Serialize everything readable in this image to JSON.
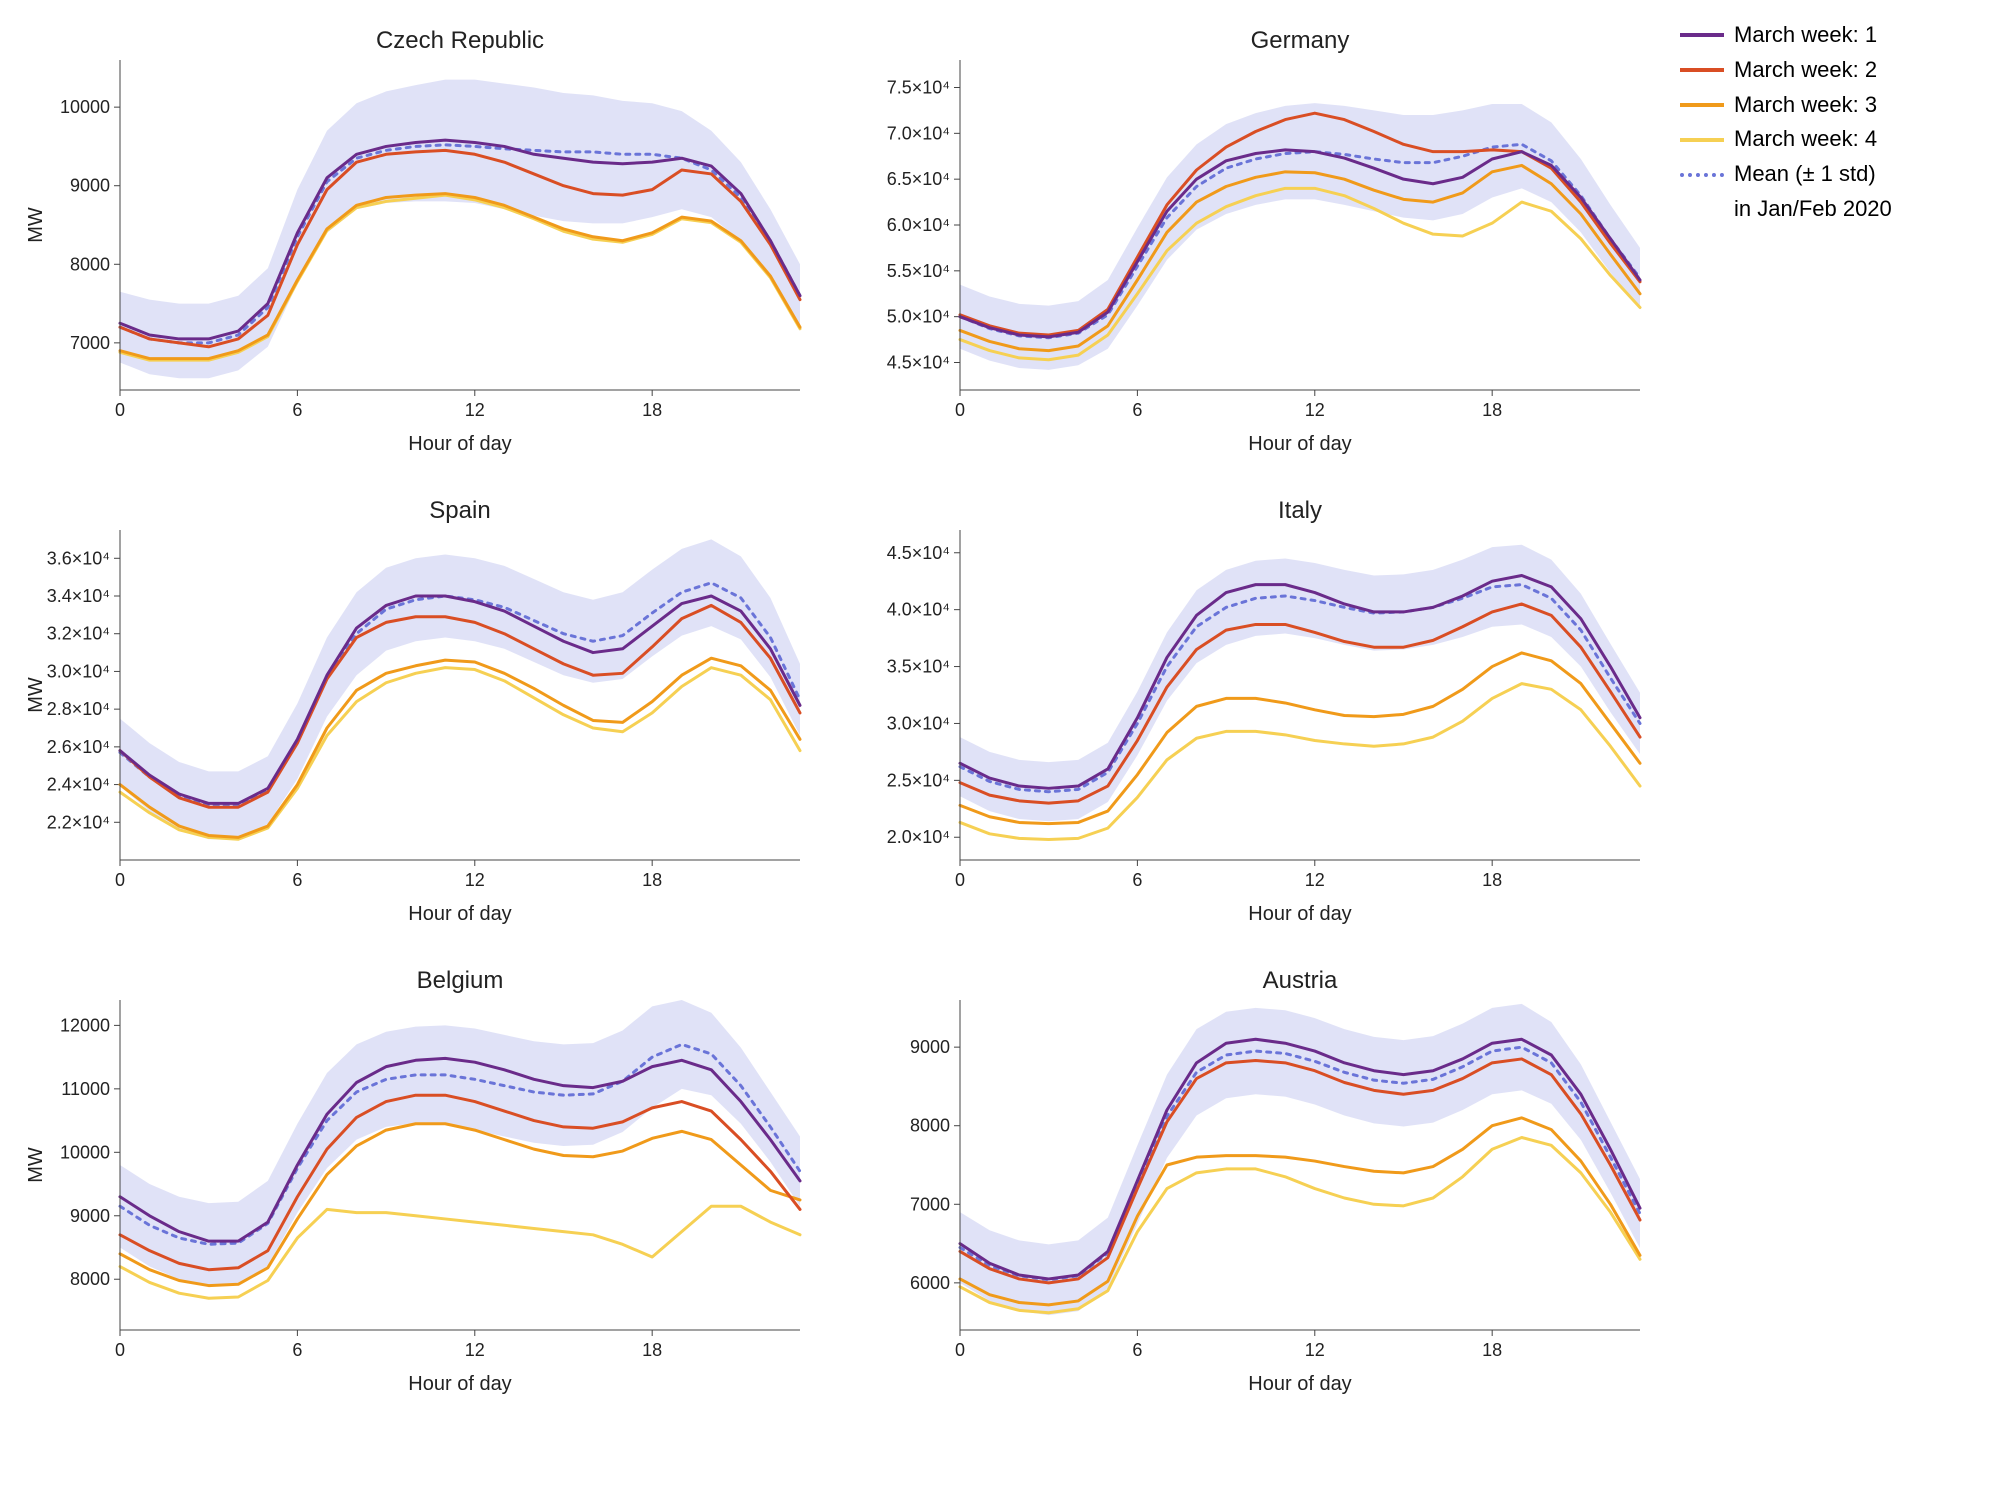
{
  "legend": {
    "items": [
      {
        "label": "March week: 1"
      },
      {
        "label": "March week: 2"
      },
      {
        "label": "March week: 3"
      },
      {
        "label": "March week: 4"
      },
      {
        "label": "Mean (± 1 std)"
      }
    ],
    "subtitle": "in Jan/Feb 2020"
  },
  "style": {
    "colors": {
      "week1": "#6a2b8a",
      "week2": "#d94e24",
      "week3": "#f09a1a",
      "week4": "#f6d053",
      "mean": "#6a74d8",
      "band": "#c7caf0",
      "band_opacity": 0.55,
      "grid": "#e6e6e6",
      "axis": "#444444",
      "text": "#222222",
      "background": "#ffffff"
    },
    "line_width": 3,
    "mean_line_width": 3,
    "mean_dash": "4,6",
    "title_fontsize": 24,
    "label_fontsize": 20,
    "tick_fontsize": 18,
    "margins": {
      "l": 100,
      "r": 20,
      "t": 40,
      "b": 70
    }
  },
  "x": {
    "lim": [
      0,
      23
    ],
    "ticks": [
      0,
      6,
      12,
      18
    ],
    "label": "Hour of day"
  },
  "hours": [
    0,
    1,
    2,
    3,
    4,
    5,
    6,
    7,
    8,
    9,
    10,
    11,
    12,
    13,
    14,
    15,
    16,
    17,
    18,
    19,
    20,
    21,
    22,
    23
  ],
  "panels": [
    {
      "title": "Czech Republic",
      "y_label": "MW",
      "y_lim": [
        6400,
        10600
      ],
      "y_ticks": [
        7000,
        8000,
        9000,
        10000
      ],
      "y_tick_labels": [
        "7000",
        "8000",
        "9000",
        "10000"
      ],
      "week1": [
        7250,
        7100,
        7050,
        7050,
        7150,
        7500,
        8400,
        9100,
        9400,
        9500,
        9550,
        9580,
        9550,
        9500,
        9400,
        9350,
        9300,
        9280,
        9300,
        9350,
        9250,
        8900,
        8300,
        7600
      ],
      "week2": [
        7200,
        7050,
        7000,
        6950,
        7050,
        7350,
        8250,
        8950,
        9300,
        9400,
        9430,
        9450,
        9400,
        9300,
        9150,
        9000,
        8900,
        8880,
        8950,
        9200,
        9150,
        8800,
        8250,
        7550
      ],
      "week3": [
        6900,
        6800,
        6800,
        6800,
        6900,
        7100,
        7800,
        8450,
        8750,
        8850,
        8880,
        8900,
        8850,
        8750,
        8600,
        8450,
        8350,
        8300,
        8400,
        8600,
        8550,
        8300,
        7850,
        7200
      ],
      "week4": [
        6880,
        6780,
        6780,
        6780,
        6880,
        7080,
        7780,
        8430,
        8720,
        8800,
        8840,
        8880,
        8820,
        8720,
        8580,
        8420,
        8320,
        8280,
        8380,
        8580,
        8530,
        8280,
        7830,
        7180
      ],
      "mean": [
        7200,
        7050,
        7000,
        7000,
        7100,
        7450,
        8350,
        9050,
        9350,
        9450,
        9500,
        9520,
        9500,
        9470,
        9450,
        9430,
        9430,
        9400,
        9400,
        9350,
        9200,
        8850,
        8300,
        7600
      ],
      "std_up": [
        7650,
        7550,
        7500,
        7500,
        7600,
        7950,
        8950,
        9700,
        10050,
        10200,
        10280,
        10350,
        10350,
        10300,
        10250,
        10180,
        10150,
        10080,
        10050,
        9950,
        9700,
        9300,
        8700,
        8000
      ],
      "std_lo": [
        6750,
        6600,
        6550,
        6550,
        6650,
        6950,
        7750,
        8400,
        8700,
        8780,
        8800,
        8800,
        8780,
        8700,
        8620,
        8550,
        8520,
        8520,
        8600,
        8700,
        8600,
        8300,
        7800,
        7150
      ]
    },
    {
      "title": "Germany",
      "y_label": "",
      "y_lim": [
        42000,
        78000
      ],
      "y_ticks": [
        45000,
        50000,
        55000,
        60000,
        65000,
        70000,
        75000
      ],
      "y_tick_labels": [
        "4.5×10⁴",
        "5.0×10⁴",
        "5.5×10⁴",
        "6.0×10⁴",
        "6.5×10⁴",
        "7.0×10⁴",
        "7.5×10⁴"
      ],
      "week1": [
        50000,
        48800,
        48000,
        47800,
        48300,
        50500,
        56000,
        61500,
        65000,
        67000,
        67800,
        68200,
        68000,
        67300,
        66200,
        65000,
        64500,
        65200,
        67200,
        68000,
        66500,
        63000,
        58500,
        54000
      ],
      "week2": [
        50200,
        49000,
        48200,
        48000,
        48500,
        50800,
        56500,
        62200,
        66000,
        68500,
        70200,
        71500,
        72200,
        71500,
        70200,
        68800,
        68000,
        68000,
        68200,
        68000,
        66200,
        62500,
        58000,
        53800
      ],
      "week3": [
        48500,
        47300,
        46500,
        46300,
        46800,
        49000,
        54000,
        59200,
        62500,
        64200,
        65200,
        65800,
        65700,
        65000,
        63800,
        62800,
        62500,
        63500,
        65800,
        66500,
        64500,
        61200,
        56800,
        52500
      ],
      "week4": [
        47500,
        46300,
        45500,
        45300,
        45800,
        48000,
        52500,
        57200,
        60200,
        62000,
        63200,
        64000,
        64000,
        63200,
        61800,
        60200,
        59000,
        58800,
        60200,
        62500,
        61500,
        58500,
        54500,
        51000
      ],
      "mean": [
        50000,
        48700,
        47900,
        47700,
        48200,
        50200,
        55500,
        60800,
        64200,
        66200,
        67200,
        67800,
        68000,
        67700,
        67200,
        66800,
        66800,
        67500,
        68500,
        68800,
        67000,
        63200,
        58500,
        54200
      ],
      "std_up": [
        53500,
        52200,
        51400,
        51200,
        51700,
        54000,
        59700,
        65200,
        68800,
        71000,
        72200,
        73000,
        73300,
        73000,
        72500,
        72000,
        72000,
        72500,
        73200,
        73200,
        71200,
        67200,
        62200,
        57500
      ],
      "std_lo": [
        46500,
        45200,
        44400,
        44200,
        44700,
        46500,
        51200,
        56200,
        59500,
        61200,
        62200,
        62800,
        62800,
        62200,
        61500,
        60800,
        60500,
        61200,
        63000,
        64000,
        62500,
        59200,
        54800,
        50800
      ]
    },
    {
      "title": "Spain",
      "y_label": "MW",
      "y_lim": [
        20000,
        37500
      ],
      "y_ticks": [
        22000,
        24000,
        26000,
        28000,
        30000,
        32000,
        34000,
        36000
      ],
      "y_tick_labels": [
        "2.2×10⁴",
        "2.4×10⁴",
        "2.6×10⁴",
        "2.8×10⁴",
        "3.0×10⁴",
        "3.2×10⁴",
        "3.4×10⁴",
        "3.6×10⁴"
      ],
      "week1": [
        25800,
        24500,
        23500,
        23000,
        23000,
        23800,
        26400,
        29800,
        32300,
        33500,
        34000,
        34000,
        33700,
        33200,
        32400,
        31600,
        31000,
        31200,
        32400,
        33600,
        34000,
        33200,
        31200,
        28200
      ],
      "week2": [
        25800,
        24400,
        23300,
        22800,
        22800,
        23600,
        26200,
        29600,
        31800,
        32600,
        32900,
        32900,
        32600,
        32000,
        31200,
        30400,
        29800,
        29900,
        31300,
        32800,
        33500,
        32600,
        30700,
        27800
      ],
      "week3": [
        24000,
        22800,
        21800,
        21300,
        21200,
        21800,
        24000,
        27000,
        29000,
        29900,
        30300,
        30600,
        30500,
        29900,
        29100,
        28200,
        27400,
        27300,
        28400,
        29800,
        30700,
        30300,
        29000,
        26400
      ],
      "week4": [
        23600,
        22500,
        21600,
        21200,
        21100,
        21700,
        23800,
        26600,
        28400,
        29400,
        29900,
        30200,
        30100,
        29500,
        28600,
        27700,
        27000,
        26800,
        27800,
        29200,
        30200,
        29800,
        28500,
        25800
      ],
      "mean": [
        25700,
        24400,
        23400,
        22900,
        22900,
        23700,
        26300,
        29700,
        32000,
        33300,
        33800,
        34000,
        33800,
        33400,
        32700,
        32000,
        31600,
        31900,
        33100,
        34200,
        34700,
        33900,
        31800,
        28500
      ],
      "std_up": [
        27500,
        26200,
        25200,
        24700,
        24700,
        25500,
        28300,
        31800,
        34200,
        35500,
        36000,
        36200,
        36000,
        35600,
        34900,
        34200,
        33800,
        34200,
        35400,
        36500,
        37000,
        36100,
        33900,
        30400
      ],
      "std_lo": [
        23900,
        22600,
        21600,
        21100,
        21100,
        21900,
        24300,
        27600,
        29800,
        31100,
        31600,
        31800,
        31600,
        31200,
        30500,
        29800,
        29400,
        29600,
        30800,
        31900,
        32400,
        31700,
        29700,
        26600
      ]
    },
    {
      "title": "Italy",
      "y_label": "",
      "y_lim": [
        18000,
        47000
      ],
      "y_ticks": [
        20000,
        25000,
        30000,
        35000,
        40000,
        45000
      ],
      "y_tick_labels": [
        "2.0×10⁴",
        "2.5×10⁴",
        "3.0×10⁴",
        "3.5×10⁴",
        "4.0×10⁴",
        "4.5×10⁴"
      ],
      "week1": [
        26500,
        25200,
        24500,
        24300,
        24500,
        26000,
        30500,
        35800,
        39500,
        41500,
        42200,
        42200,
        41500,
        40500,
        39800,
        39800,
        40200,
        41200,
        42500,
        43000,
        42000,
        39200,
        35000,
        30500
      ],
      "week2": [
        24800,
        23700,
        23200,
        23000,
        23200,
        24500,
        28500,
        33200,
        36500,
        38200,
        38700,
        38700,
        38000,
        37200,
        36700,
        36700,
        37300,
        38500,
        39800,
        40500,
        39500,
        36700,
        32800,
        28800
      ],
      "week3": [
        22800,
        21800,
        21300,
        21200,
        21300,
        22300,
        25500,
        29200,
        31500,
        32200,
        32200,
        31800,
        31200,
        30700,
        30600,
        30800,
        31500,
        33000,
        35000,
        36200,
        35500,
        33500,
        30000,
        26500
      ],
      "week4": [
        21300,
        20300,
        19900,
        19800,
        19900,
        20800,
        23500,
        26800,
        28700,
        29300,
        29300,
        29000,
        28500,
        28200,
        28000,
        28200,
        28800,
        30200,
        32200,
        33500,
        33000,
        31200,
        28000,
        24500
      ],
      "mean": [
        26200,
        24900,
        24200,
        24000,
        24200,
        25700,
        30000,
        35000,
        38500,
        40200,
        41000,
        41200,
        40800,
        40200,
        39700,
        39800,
        40200,
        41000,
        42000,
        42200,
        41000,
        38200,
        34000,
        30000
      ],
      "std_up": [
        28800,
        27500,
        26800,
        26600,
        26800,
        28300,
        32800,
        38000,
        41700,
        43500,
        44300,
        44500,
        44100,
        43500,
        43000,
        43100,
        43500,
        44400,
        45500,
        45700,
        44400,
        41400,
        37000,
        32700
      ],
      "std_lo": [
        23600,
        22300,
        21600,
        21400,
        21600,
        23100,
        27200,
        32000,
        35300,
        36900,
        37700,
        37900,
        37500,
        36900,
        36400,
        36500,
        36900,
        37600,
        38500,
        38700,
        37600,
        35000,
        31000,
        27300
      ]
    },
    {
      "title": "Belgium",
      "y_label": "MW",
      "y_lim": [
        7200,
        12400
      ],
      "y_ticks": [
        8000,
        9000,
        10000,
        11000,
        12000
      ],
      "y_tick_labels": [
        "8000",
        "9000",
        "10000",
        "11000",
        "12000"
      ],
      "week1": [
        9300,
        9000,
        8750,
        8600,
        8600,
        8900,
        9800,
        10600,
        11100,
        11350,
        11450,
        11480,
        11420,
        11300,
        11150,
        11050,
        11020,
        11120,
        11350,
        11450,
        11300,
        10800,
        10200,
        9550
      ],
      "week2": [
        8700,
        8450,
        8250,
        8150,
        8180,
        8450,
        9300,
        10050,
        10550,
        10800,
        10900,
        10900,
        10800,
        10650,
        10500,
        10400,
        10380,
        10480,
        10700,
        10800,
        10650,
        10200,
        9700,
        9100
      ],
      "week3": [
        8400,
        8150,
        7980,
        7900,
        7920,
        8180,
        8950,
        9650,
        10100,
        10350,
        10450,
        10450,
        10350,
        10200,
        10050,
        9950,
        9930,
        10020,
        10220,
        10330,
        10200,
        9800,
        9400,
        9250
      ],
      "week4": [
        8200,
        7950,
        7780,
        7700,
        7720,
        7980,
        8650,
        9100,
        9050,
        9050,
        9000,
        8950,
        8900,
        8850,
        8800,
        8750,
        8700,
        8550,
        8350,
        8750,
        9150,
        9150,
        8900,
        8700
      ],
      "mean": [
        9150,
        8850,
        8650,
        8550,
        8570,
        8880,
        9750,
        10500,
        10950,
        11150,
        11220,
        11220,
        11150,
        11050,
        10950,
        10900,
        10920,
        11120,
        11500,
        11700,
        11550,
        11050,
        10400,
        9700
      ],
      "std_up": [
        9800,
        9500,
        9300,
        9200,
        9220,
        9550,
        10450,
        11250,
        11700,
        11900,
        11980,
        12000,
        11950,
        11850,
        11750,
        11700,
        11720,
        11920,
        12300,
        12400,
        12200,
        11650,
        10950,
        10250
      ],
      "std_lo": [
        8500,
        8200,
        8000,
        7900,
        7920,
        8210,
        9050,
        9750,
        10200,
        10400,
        10460,
        10440,
        10350,
        10250,
        10150,
        10100,
        10120,
        10320,
        10700,
        11000,
        10900,
        10450,
        9850,
        9150
      ]
    },
    {
      "title": "Austria",
      "y_label": "",
      "y_lim": [
        5400,
        9600
      ],
      "y_ticks": [
        6000,
        7000,
        8000,
        9000
      ],
      "y_tick_labels": [
        "6000",
        "7000",
        "8000",
        "9000"
      ],
      "week1": [
        6500,
        6250,
        6100,
        6050,
        6100,
        6400,
        7300,
        8200,
        8800,
        9050,
        9100,
        9050,
        8950,
        8800,
        8700,
        8650,
        8700,
        8850,
        9050,
        9100,
        8900,
        8400,
        7700,
        6950
      ],
      "week2": [
        6400,
        6180,
        6050,
        6000,
        6050,
        6320,
        7200,
        8050,
        8600,
        8800,
        8830,
        8800,
        8700,
        8550,
        8450,
        8400,
        8450,
        8600,
        8800,
        8850,
        8650,
        8150,
        7500,
        6800
      ],
      "week3": [
        6050,
        5850,
        5750,
        5720,
        5770,
        6020,
        6850,
        7500,
        7600,
        7620,
        7620,
        7600,
        7550,
        7480,
        7420,
        7400,
        7480,
        7700,
        8000,
        8100,
        7950,
        7550,
        7000,
        6350
      ],
      "week4": [
        5950,
        5750,
        5650,
        5620,
        5670,
        5900,
        6650,
        7200,
        7400,
        7450,
        7450,
        7350,
        7200,
        7080,
        7000,
        6980,
        7080,
        7350,
        7700,
        7850,
        7750,
        7400,
        6900,
        6300
      ],
      "mean": [
        6450,
        6220,
        6090,
        6040,
        6090,
        6380,
        7250,
        8120,
        8680,
        8900,
        8950,
        8920,
        8820,
        8680,
        8580,
        8540,
        8590,
        8750,
        8950,
        9000,
        8800,
        8300,
        7600,
        6880
      ],
      "std_up": [
        6900,
        6670,
        6540,
        6490,
        6540,
        6830,
        7750,
        8650,
        9230,
        9450,
        9500,
        9470,
        9370,
        9230,
        9130,
        9090,
        9140,
        9300,
        9500,
        9550,
        9320,
        8780,
        8050,
        7320
      ],
      "std_lo": [
        6000,
        5770,
        5640,
        5590,
        5640,
        5930,
        6750,
        7590,
        8130,
        8350,
        8400,
        8370,
        8270,
        8130,
        8030,
        7990,
        8040,
        8200,
        8400,
        8450,
        8280,
        7820,
        7150,
        6440
      ]
    }
  ]
}
